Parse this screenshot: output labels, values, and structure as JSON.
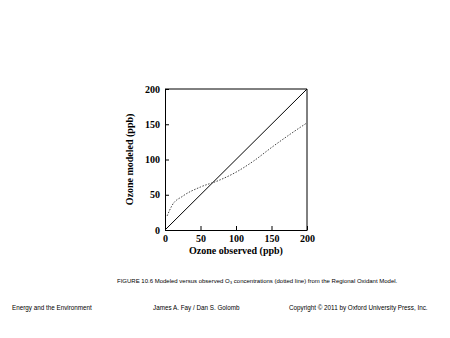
{
  "chart_data": {
    "type": "line",
    "x_label": "Ozone observed (ppb)",
    "y_label": "Ozone modeled (ppb)",
    "caption": "FIGURE 10.6 Modeled versus observed O₃ concentrations (dotted line) from the Regional Oxidant Model.",
    "footer": [
      "Energy and the Environment",
      "James A. Fay / Dan S. Golomb",
      "Copyright © 2011 by Oxford University Press, Inc."
    ],
    "xlim": [
      0,
      200
    ],
    "ylim": [
      0,
      200
    ],
    "xticks": [
      0,
      50,
      100,
      150,
      200
    ],
    "yticks": [
      0,
      50,
      100,
      150,
      200
    ],
    "series": [
      {
        "color": "#000000",
        "line_style": "solid",
        "x": [
          0,
          200
        ],
        "values": [
          0,
          200
        ]
      },
      {
        "color": "#444444",
        "line_style": "dotted",
        "x": [
          3,
          10,
          25,
          50,
          75,
          100,
          125,
          150,
          175,
          200
        ],
        "values": [
          20,
          35,
          48,
          61,
          70,
          82,
          98,
          117,
          135,
          152
        ]
      }
    ]
  }
}
